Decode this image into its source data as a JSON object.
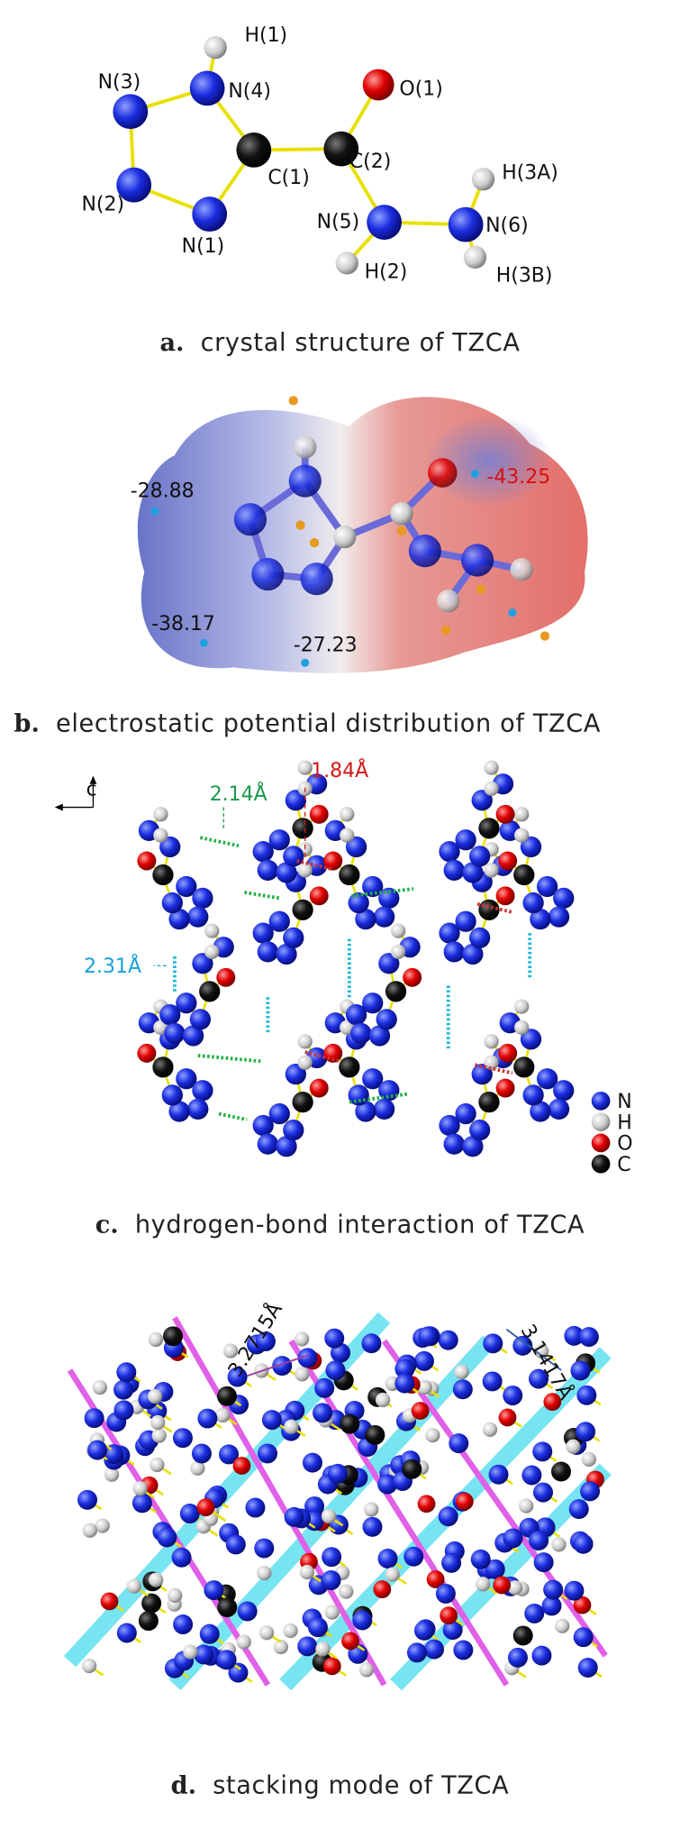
{
  "panels": [
    {
      "atom_labels": [
        "H(1)",
        "N(4)",
        "N(3)",
        "N(2)",
        "N(1)",
        "C(1)",
        "C(2)",
        "O(1)",
        "N(5)",
        "H(2)",
        "N(6)",
        "H(3A)",
        "H(3B)"
      ],
      "caption": {
        "label": "a.",
        "text": "crystal structure of TZCA"
      }
    },
    {
      "potential_labels": [
        "-28.88",
        "-43.25",
        "-38.17",
        "-27.23"
      ],
      "caption": {
        "label": "b.",
        "text": "electrostatic potential distribution of TZCA"
      }
    },
    {
      "axis_label": "c",
      "bond_labels": [
        "2.14Å",
        "1.84Å",
        "2.31Å"
      ],
      "legend": [
        "N",
        "H",
        "O",
        "C"
      ],
      "caption": {
        "label": "c.",
        "text": "hydrogen-bond interaction of TZCA"
      }
    },
    {
      "distance_labels": [
        "3.2715Å",
        "3.1417Å"
      ],
      "caption": {
        "label": "d.",
        "text": "stacking mode of TZCA"
      }
    }
  ]
}
